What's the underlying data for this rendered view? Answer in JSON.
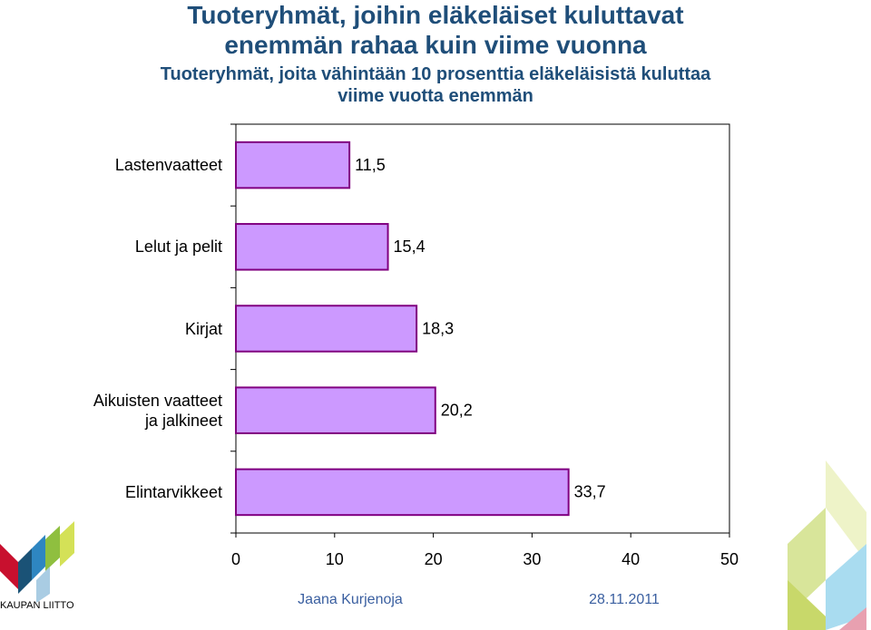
{
  "chart_data": {
    "type": "barh",
    "title": "Tuoteryhmät, joihin eläkeläiset kuluttavat\nenemmän rahaa kuin viime vuonna",
    "subtitle": "Tuoteryhmät, joita vähintään 10 prosenttia eläkeläisistä kuluttaa\nviime vuotta enemmän",
    "categories": [
      "Lastenvaatteet",
      "Lelut ja pelit",
      "Kirjat",
      "Aikuisten vaatteet\nja jalkineet",
      "Elintarvikkeet"
    ],
    "values": [
      11.5,
      15.4,
      18.3,
      20.2,
      33.7
    ],
    "value_labels": [
      "11,5",
      "15,4",
      "18,3",
      "20,2",
      "33,7"
    ],
    "color": "#cc99ff",
    "edge_color": "#800080",
    "xlim": [
      0,
      50
    ],
    "xticks": [
      0,
      10,
      20,
      30,
      40,
      50
    ]
  },
  "footer": {
    "author": "Jaana Kurjenoja",
    "date": "28.11.2011",
    "logo": "KAUPAN LIITTO"
  }
}
